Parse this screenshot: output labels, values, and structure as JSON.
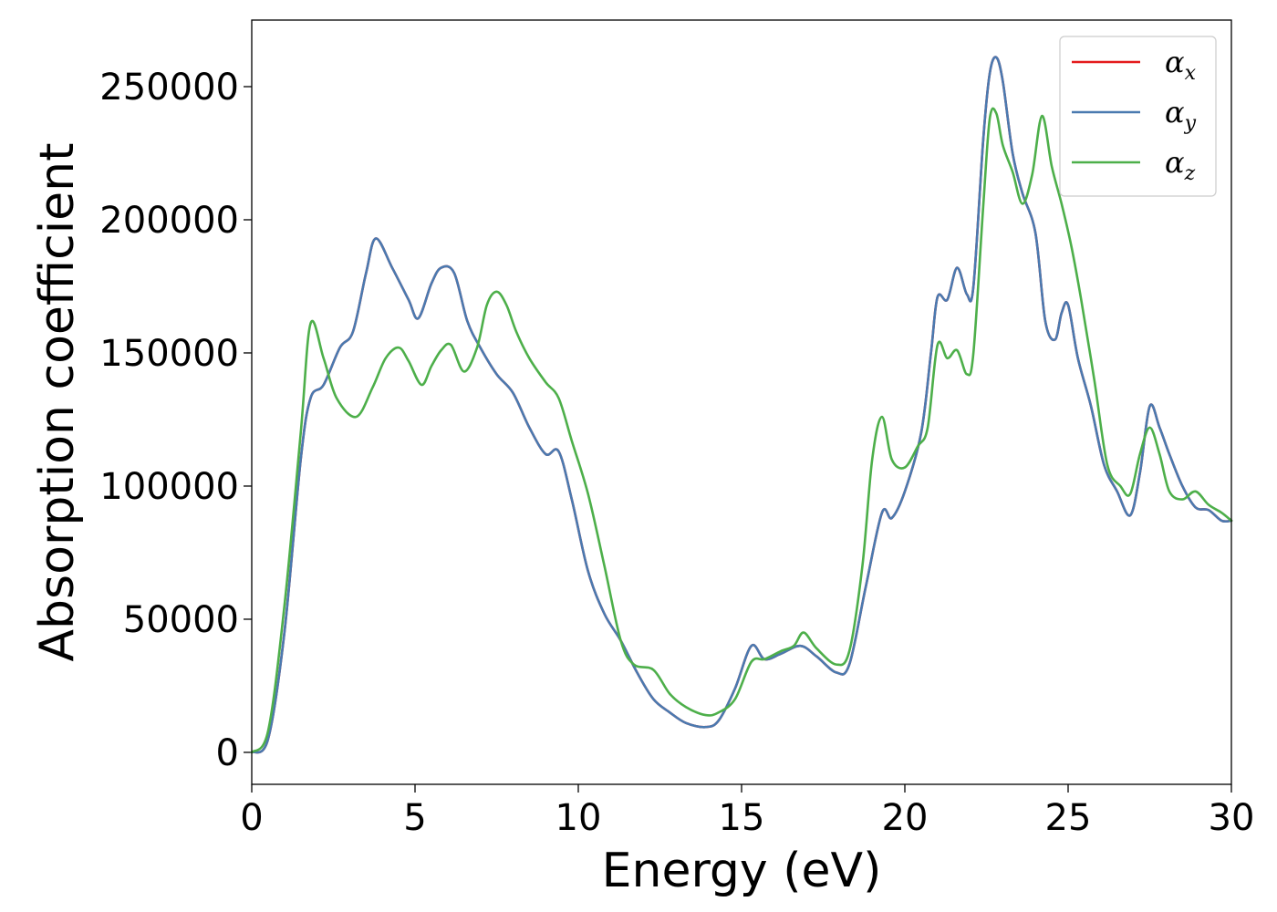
{
  "chart_data": {
    "type": "line",
    "title": "",
    "xlabel": "Energy (eV)",
    "ylabel": "Absorption coefficient",
    "xlim": [
      0,
      30
    ],
    "ylim": [
      -12000,
      275000
    ],
    "xticks": [
      0,
      5,
      10,
      15,
      20,
      25,
      30
    ],
    "xtick_labels": [
      "0",
      "5",
      "10",
      "15",
      "20",
      "25",
      "30"
    ],
    "yticks": [
      0,
      50000,
      100000,
      150000,
      200000,
      250000
    ],
    "ytick_labels": [
      "0",
      "50000",
      "100000",
      "150000",
      "200000",
      "250000"
    ],
    "grid": false,
    "legend_position": "top-right",
    "series": [
      {
        "name": "αx",
        "legend_base": "α",
        "legend_sub": "x",
        "color": "#e41a1c",
        "x": [
          0,
          0.5,
          1,
          1.5,
          1.8,
          2.2,
          2.7,
          3.1,
          3.5,
          3.8,
          4.3,
          4.8,
          5.1,
          5.5,
          5.8,
          6.2,
          6.6,
          7.0,
          7.5,
          8.0,
          8.5,
          9.0,
          9.4,
          9.8,
          10.3,
          10.8,
          11.3,
          11.8,
          12.3,
          12.8,
          13.3,
          13.9,
          14.3,
          14.8,
          15.3,
          15.7,
          16.2,
          16.8,
          17.3,
          17.9,
          18.3,
          18.8,
          19.3,
          19.6,
          20.0,
          20.5,
          20.8,
          21.0,
          21.3,
          21.6,
          21.9,
          22.1,
          22.4,
          22.6,
          22.8,
          23.0,
          23.3,
          23.6,
          24.0,
          24.3,
          24.6,
          24.8,
          25.0,
          25.3,
          25.7,
          26.1,
          26.5,
          26.9,
          27.2,
          27.5,
          27.8,
          28.1,
          28.5,
          28.9,
          29.3,
          29.7,
          30.0
        ],
        "values": [
          0,
          5000,
          45000,
          110000,
          133000,
          138000,
          152000,
          158000,
          180000,
          193000,
          182000,
          170000,
          163000,
          176000,
          182000,
          180000,
          162000,
          152000,
          142000,
          135000,
          122000,
          112000,
          113000,
          95000,
          68000,
          52000,
          42000,
          30000,
          20000,
          15000,
          11000,
          9500,
          12000,
          24000,
          40000,
          35000,
          37000,
          40000,
          36000,
          30000,
          33000,
          62000,
          90000,
          88000,
          98000,
          120000,
          150000,
          171000,
          170000,
          182000,
          172000,
          175000,
          230000,
          255000,
          261000,
          252000,
          225000,
          210000,
          195000,
          162000,
          155000,
          165000,
          168000,
          148000,
          130000,
          108000,
          98000,
          89000,
          105000,
          130000,
          122000,
          112000,
          100000,
          92000,
          91000,
          87000,
          87000
        ]
      },
      {
        "name": "αy",
        "legend_base": "α",
        "legend_sub": "y",
        "color": "#4a7ab0",
        "x": [
          0,
          0.5,
          1,
          1.5,
          1.8,
          2.2,
          2.7,
          3.1,
          3.5,
          3.8,
          4.3,
          4.8,
          5.1,
          5.5,
          5.8,
          6.2,
          6.6,
          7.0,
          7.5,
          8.0,
          8.5,
          9.0,
          9.4,
          9.8,
          10.3,
          10.8,
          11.3,
          11.8,
          12.3,
          12.8,
          13.3,
          13.9,
          14.3,
          14.8,
          15.3,
          15.7,
          16.2,
          16.8,
          17.3,
          17.9,
          18.3,
          18.8,
          19.3,
          19.6,
          20.0,
          20.5,
          20.8,
          21.0,
          21.3,
          21.6,
          21.9,
          22.1,
          22.4,
          22.6,
          22.8,
          23.0,
          23.3,
          23.6,
          24.0,
          24.3,
          24.6,
          24.8,
          25.0,
          25.3,
          25.7,
          26.1,
          26.5,
          26.9,
          27.2,
          27.5,
          27.8,
          28.1,
          28.5,
          28.9,
          29.3,
          29.7,
          30.0
        ],
        "values": [
          0,
          5000,
          45000,
          110000,
          133000,
          138000,
          152000,
          158000,
          180000,
          193000,
          182000,
          170000,
          163000,
          176000,
          182000,
          180000,
          162000,
          152000,
          142000,
          135000,
          122000,
          112000,
          113000,
          95000,
          68000,
          52000,
          42000,
          30000,
          20000,
          15000,
          11000,
          9500,
          12000,
          24000,
          40000,
          35000,
          37000,
          40000,
          36000,
          30000,
          33000,
          62000,
          90000,
          88000,
          98000,
          120000,
          150000,
          171000,
          170000,
          182000,
          172000,
          175000,
          230000,
          255000,
          261000,
          252000,
          225000,
          210000,
          195000,
          162000,
          155000,
          165000,
          168000,
          148000,
          130000,
          108000,
          98000,
          89000,
          105000,
          130000,
          122000,
          112000,
          100000,
          92000,
          91000,
          87000,
          87000
        ]
      },
      {
        "name": "αz",
        "legend_base": "α",
        "legend_sub": "z",
        "color": "#4daf4a",
        "x": [
          0,
          0.5,
          1,
          1.5,
          1.8,
          2.2,
          2.6,
          3.2,
          3.7,
          4.1,
          4.5,
          4.8,
          5.2,
          5.5,
          5.8,
          6.1,
          6.5,
          6.9,
          7.2,
          7.5,
          7.8,
          8.1,
          8.5,
          9.0,
          9.4,
          9.8,
          10.3,
          10.8,
          11.3,
          11.7,
          12.3,
          12.8,
          13.3,
          13.9,
          14.3,
          14.8,
          15.3,
          15.7,
          16.2,
          16.6,
          16.9,
          17.3,
          17.9,
          18.3,
          18.7,
          19.0,
          19.3,
          19.6,
          20.0,
          20.4,
          20.7,
          21.0,
          21.3,
          21.6,
          21.9,
          22.1,
          22.4,
          22.6,
          22.8,
          23.0,
          23.3,
          23.6,
          23.9,
          24.2,
          24.5,
          24.8,
          25.1,
          25.4,
          25.8,
          26.2,
          26.6,
          26.9,
          27.2,
          27.5,
          27.8,
          28.1,
          28.5,
          28.9,
          29.3,
          29.7,
          30.0
        ],
        "values": [
          0,
          8000,
          55000,
          120000,
          161000,
          148000,
          133000,
          126000,
          137000,
          148000,
          152000,
          147000,
          138000,
          145000,
          151000,
          153000,
          143000,
          152000,
          168000,
          173000,
          168000,
          158000,
          148000,
          139000,
          133000,
          117000,
          97000,
          70000,
          42000,
          33000,
          31000,
          22000,
          17000,
          14000,
          15000,
          20000,
          34000,
          35000,
          38000,
          40000,
          45000,
          39000,
          33000,
          38000,
          70000,
          110000,
          126000,
          110000,
          107000,
          115000,
          122000,
          153000,
          148000,
          151000,
          142000,
          150000,
          205000,
          238000,
          240000,
          228000,
          218000,
          206000,
          217000,
          239000,
          220000,
          206000,
          190000,
          170000,
          140000,
          108000,
          100000,
          97000,
          112000,
          122000,
          112000,
          98000,
          95000,
          98000,
          93000,
          90000,
          87000
        ]
      }
    ]
  }
}
